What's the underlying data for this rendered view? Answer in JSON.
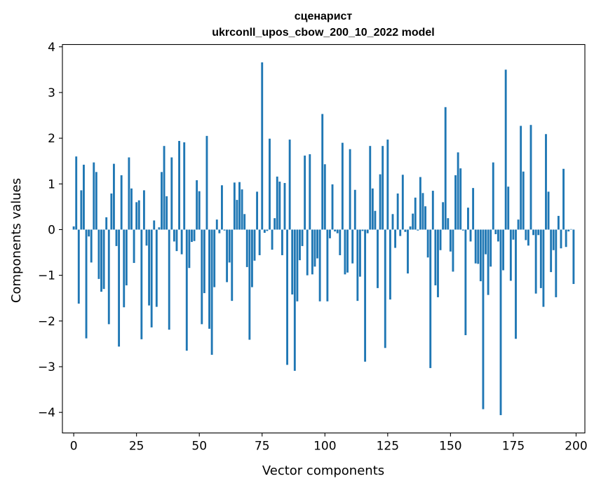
{
  "chart_data": {
    "type": "bar",
    "title_line1": "сценарист",
    "title_line2": "ukrconll_upos_cbow_200_10_2022 model",
    "xlabel": "Vector components",
    "ylabel": "Components values",
    "xlim": [
      -4.5,
      203.5
    ],
    "ylim": [
      -4.45,
      4.05
    ],
    "xticks": [
      0,
      25,
      50,
      75,
      100,
      125,
      150,
      175,
      200
    ],
    "yticks": [
      -4,
      -3,
      -2,
      -1,
      0,
      1,
      2,
      3,
      4
    ],
    "xtick_labels": [
      "0",
      "25",
      "50",
      "75",
      "100",
      "125",
      "150",
      "175",
      "200"
    ],
    "ytick_labels": [
      "−4",
      "−3",
      "−2",
      "−1",
      "0",
      "1",
      "2",
      "3",
      "4"
    ],
    "bar_color": "#1f77b4",
    "values": [
      0.07,
      1.6,
      -1.62,
      0.86,
      1.42,
      -2.38,
      -0.15,
      -0.72,
      1.47,
      1.26,
      -1.08,
      -1.36,
      -1.3,
      0.27,
      -2.07,
      0.79,
      1.44,
      -0.36,
      -2.56,
      1.19,
      -1.7,
      -1.22,
      1.58,
      0.9,
      -0.73,
      0.6,
      0.64,
      -2.4,
      0.86,
      -0.35,
      -1.66,
      -2.14,
      0.2,
      -1.69,
      0.05,
      1.26,
      1.83,
      0.73,
      -2.19,
      1.58,
      -0.26,
      -0.47,
      1.94,
      -0.54,
      1.91,
      -2.65,
      -0.84,
      -0.27,
      -0.25,
      1.08,
      0.84,
      -2.07,
      -1.39,
      2.05,
      -2.17,
      -2.74,
      -1.26,
      0.22,
      -0.08,
      0.97,
      -0.02,
      -1.15,
      -0.72,
      -1.56,
      1.03,
      0.65,
      1.04,
      0.88,
      0.34,
      -0.82,
      -2.41,
      -1.26,
      -0.68,
      0.83,
      -0.56,
      3.66,
      -0.07,
      -0.03,
      1.99,
      -0.44,
      0.25,
      1.16,
      1.05,
      -0.56,
      1.02,
      -2.96,
      1.97,
      -1.42,
      -3.09,
      -1.57,
      -0.67,
      -0.36,
      1.62,
      -1.0,
      1.65,
      -0.98,
      -0.81,
      -0.63,
      -1.57,
      2.53,
      1.43,
      -1.57,
      -0.19,
      0.99,
      -0.04,
      -0.08,
      -0.56,
      1.9,
      -0.98,
      -0.94,
      1.76,
      -0.74,
      0.87,
      -1.56,
      -1.03,
      -0.03,
      -2.89,
      -0.08,
      1.83,
      0.9,
      0.41,
      -1.28,
      1.21,
      1.83,
      -2.59,
      1.97,
      -1.53,
      0.34,
      -0.4,
      0.79,
      -0.14,
      1.2,
      -0.05,
      -0.96,
      0.07,
      0.35,
      0.7,
      -0.02,
      1.15,
      0.8,
      0.51,
      -0.61,
      -3.03,
      0.85,
      -1.22,
      -1.48,
      -0.45,
      0.6,
      2.68,
      0.25,
      -0.48,
      -0.92,
      1.19,
      1.69,
      1.34,
      -0.02,
      -2.31,
      0.48,
      -0.26,
      0.91,
      -0.74,
      -0.75,
      -1.13,
      -3.93,
      -0.54,
      -1.43,
      -0.81,
      1.47,
      -0.1,
      -0.26,
      -4.06,
      -0.89,
      3.5,
      0.94,
      -1.12,
      -0.22,
      -2.39,
      0.22,
      2.27,
      1.27,
      -0.23,
      -0.35,
      2.29,
      -0.12,
      -1.4,
      -0.12,
      -1.28,
      -1.69,
      2.09,
      0.83,
      -0.93,
      -0.45,
      -1.48,
      0.3,
      -0.41,
      1.33,
      -0.38,
      -0.04,
      0.01,
      -1.19
    ]
  }
}
